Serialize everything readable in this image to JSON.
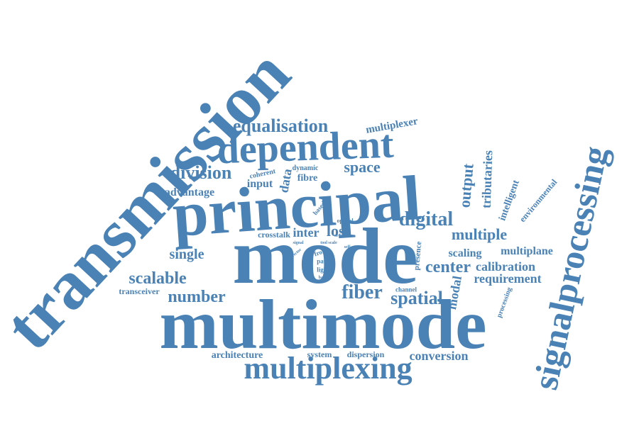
{
  "colors": {
    "word": "#4a82b6",
    "background": "#ffffff"
  },
  "words": [
    {
      "id": "transmission",
      "text": "transmission"
    },
    {
      "id": "signalprocessing",
      "text": "signalprocessing"
    },
    {
      "id": "multimode",
      "text": "multimode"
    },
    {
      "id": "mode",
      "text": "mode"
    },
    {
      "id": "principal",
      "text": "principal"
    },
    {
      "id": "dependent",
      "text": "dependent"
    },
    {
      "id": "multiplexing",
      "text": "multiplexing"
    },
    {
      "id": "equalisation",
      "text": "equalisation"
    },
    {
      "id": "multiplexer",
      "text": "multiplexer"
    },
    {
      "id": "division",
      "text": "division"
    },
    {
      "id": "coherent",
      "text": "coherent"
    },
    {
      "id": "dynamic",
      "text": "dynamic"
    },
    {
      "id": "space",
      "text": "space"
    },
    {
      "id": "input",
      "text": "input"
    },
    {
      "id": "fibre",
      "text": "fibre"
    },
    {
      "id": "data",
      "text": "data"
    },
    {
      "id": "advantage",
      "text": "advantage"
    },
    {
      "id": "based",
      "text": "based"
    },
    {
      "id": "optical",
      "text": "optical"
    },
    {
      "id": "digital",
      "text": "digital"
    },
    {
      "id": "output",
      "text": "output"
    },
    {
      "id": "tributaries",
      "text": "tributaries"
    },
    {
      "id": "intelligent",
      "text": "intelligent"
    },
    {
      "id": "environmental",
      "text": "environmental"
    },
    {
      "id": "crosstalk",
      "text": "crosstalk"
    },
    {
      "id": "inter",
      "text": "inter"
    },
    {
      "id": "loss",
      "text": "loss"
    },
    {
      "id": "multiple",
      "text": "multiple"
    },
    {
      "id": "single",
      "text": "single"
    },
    {
      "id": "signal",
      "text": "signal"
    },
    {
      "id": "order",
      "text": "order"
    },
    {
      "id": "tool-scale",
      "text": "tool scale"
    },
    {
      "id": "front",
      "text": "front"
    },
    {
      "id": "path",
      "text": "path"
    },
    {
      "id": "light",
      "text": "light"
    },
    {
      "id": "basis",
      "text": "basis"
    },
    {
      "id": "self",
      "text": "self"
    },
    {
      "id": "vector",
      "text": "vector"
    },
    {
      "id": "presence",
      "text": "presence"
    },
    {
      "id": "scaling",
      "text": "scaling"
    },
    {
      "id": "multiplane",
      "text": "multiplane"
    },
    {
      "id": "center",
      "text": "center"
    },
    {
      "id": "calibration",
      "text": "calibration"
    },
    {
      "id": "scalable",
      "text": "scalable"
    },
    {
      "id": "requirement",
      "text": "requirement"
    },
    {
      "id": "transceiver",
      "text": "transceiver"
    },
    {
      "id": "number",
      "text": "number"
    },
    {
      "id": "fiber",
      "text": "fiber"
    },
    {
      "id": "spatial",
      "text": "spatial"
    },
    {
      "id": "channel",
      "text": "channel"
    },
    {
      "id": "modal",
      "text": "modal"
    },
    {
      "id": "processing",
      "text": "processing"
    },
    {
      "id": "architecture",
      "text": "architecture"
    },
    {
      "id": "system",
      "text": "system"
    },
    {
      "id": "dispersion",
      "text": "dispersion"
    },
    {
      "id": "conversion",
      "text": "conversion"
    }
  ]
}
